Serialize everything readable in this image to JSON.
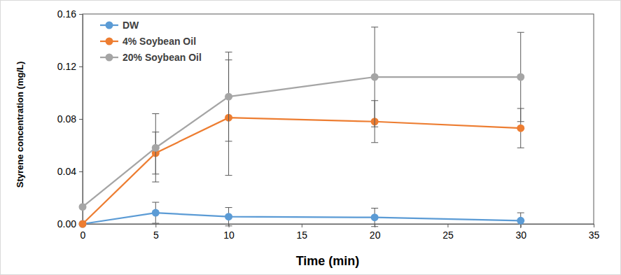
{
  "chart_data": {
    "type": "line",
    "x_label": "Time (min)",
    "y_label": "Styrene concentration (mg/L)",
    "x": [
      0,
      5,
      10,
      20,
      30
    ],
    "xlim": [
      0,
      35
    ],
    "xticks": [
      0,
      5,
      10,
      15,
      20,
      25,
      30,
      35
    ],
    "ylim": [
      0,
      0.16
    ],
    "yticks": [
      {
        "value": 0,
        "label": "0.00"
      },
      {
        "value": 0.04,
        "label": "0.04"
      },
      {
        "value": 0.08,
        "label": "0.08"
      },
      {
        "value": 0.12,
        "label": "0.12"
      },
      {
        "value": 0.16,
        "label": "0.16"
      }
    ],
    "grid": false,
    "legend": "upper left",
    "marker": "circle",
    "series": [
      {
        "name": "DW",
        "color": "#5b9bd5",
        "values": [
          0,
          0.0085,
          0.0055,
          0.005,
          0.0025
        ],
        "errors": [
          0,
          0.008,
          0.007,
          0.007,
          0.006
        ]
      },
      {
        "name": "4% Soybean Oil",
        "color": "#ed7d31",
        "values": [
          0,
          0.054,
          0.081,
          0.078,
          0.073
        ],
        "errors": [
          0,
          0.016,
          0.044,
          0.016,
          0.015
        ]
      },
      {
        "name": "20% Soybean Oil",
        "color": "#a5a5a5",
        "values": [
          0.013,
          0.058,
          0.097,
          0.112,
          0.112
        ],
        "errors": [
          0,
          0.026,
          0.034,
          0.038,
          0.034
        ]
      }
    ]
  }
}
